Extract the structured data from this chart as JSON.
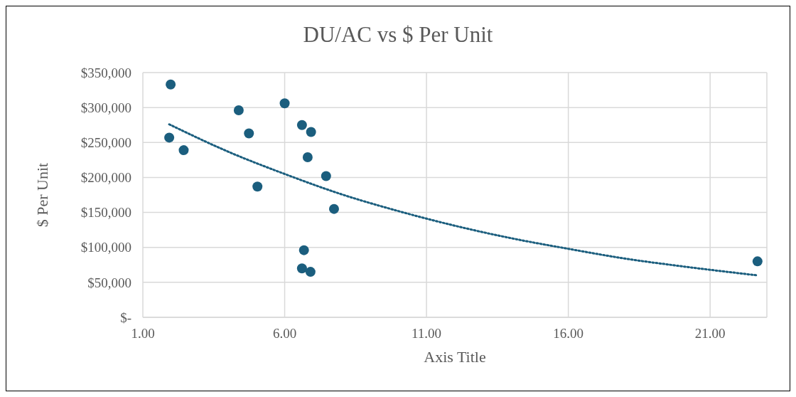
{
  "chart_data": {
    "type": "scatter",
    "title": "DU/AC vs $ Per Unit",
    "xlabel": "Axis Title",
    "ylabel": "$ Per Unit",
    "series": [
      {
        "type": "scatter",
        "color": "#1b5e7e",
        "marker": "circle",
        "x": [
          1.98,
          1.93,
          2.44,
          4.38,
          4.74,
          5.04,
          6.0,
          6.61,
          6.93,
          6.81,
          7.46,
          7.74,
          6.68,
          6.61,
          6.91,
          22.67
        ],
        "values": [
          333000,
          257000,
          239000,
          296000,
          263000,
          187000,
          306000,
          275000,
          265000,
          229000,
          202000,
          155000,
          96000,
          70000,
          65000,
          80000
        ]
      },
      {
        "type": "line",
        "color": "#1b5e7e",
        "line_style": "dotted",
        "marker": "none",
        "x": [
          1.93,
          4,
          6,
          8,
          10,
          12,
          14,
          16,
          18,
          20,
          22.67
        ],
        "values": [
          276000,
          237000,
          205000,
          176000,
          152000,
          131000,
          113000,
          98000,
          84000,
          73000,
          60000
        ]
      }
    ],
    "xlim": [
      1,
      23
    ],
    "xticks": [
      {
        "value": 1,
        "label": "1.00"
      },
      {
        "value": 6,
        "label": "6.00"
      },
      {
        "value": 11,
        "label": "11.00"
      },
      {
        "value": 16,
        "label": "16.00"
      },
      {
        "value": 21,
        "label": "21.00"
      }
    ],
    "ylim": [
      0,
      350000
    ],
    "yticks": [
      {
        "value": 0,
        "label": "$-"
      },
      {
        "value": 50000,
        "label": "$50,000"
      },
      {
        "value": 100000,
        "label": "$100,000"
      },
      {
        "value": 150000,
        "label": "$150,000"
      },
      {
        "value": 200000,
        "label": "$200,000"
      },
      {
        "value": 250000,
        "label": "$250,000"
      },
      {
        "value": 300000,
        "label": "$300,000"
      },
      {
        "value": 350000,
        "label": "$350,000"
      }
    ],
    "grid": true,
    "legend": false
  }
}
